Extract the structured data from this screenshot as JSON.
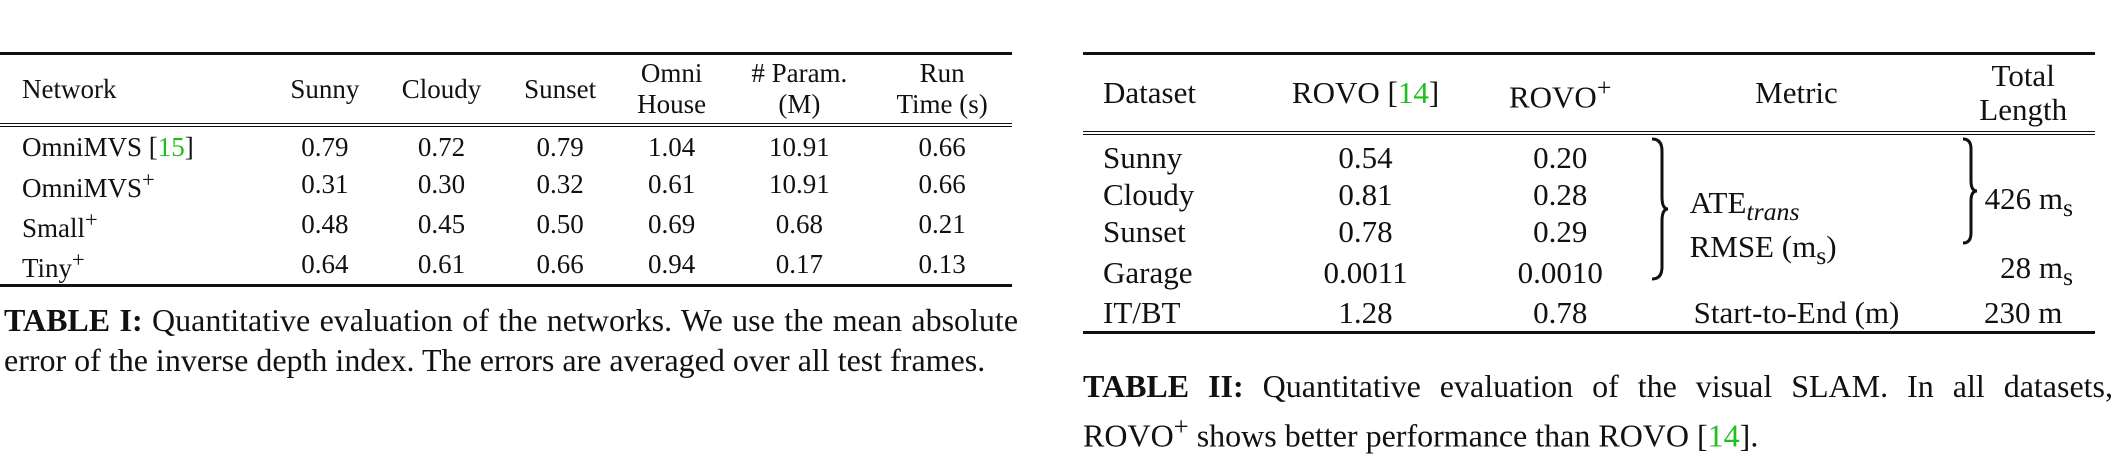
{
  "table1": {
    "headers": {
      "network": "Network",
      "sunny": "Sunny",
      "cloudy": "Cloudy",
      "sunset": "Sunset",
      "omni_house_1": "Omni",
      "omni_house_2": "House",
      "param_1": "# Param.",
      "param_2": "(M)",
      "runtime_1": "Run",
      "runtime_2": "Time (s)"
    },
    "rows": [
      {
        "network": "OmniMVS",
        "cite": "15",
        "sunny": "0.79",
        "cloudy": "0.72",
        "sunset": "0.79",
        "omni": "1.04",
        "param": "10.91",
        "runtime": "0.66"
      },
      {
        "network": "OmniMVS",
        "sup": "+",
        "sunny": "0.31",
        "cloudy": "0.30",
        "sunset": "0.32",
        "omni": "0.61",
        "param": "10.91",
        "runtime": "0.66"
      },
      {
        "network": "Small",
        "sup": "+",
        "sunny": "0.48",
        "cloudy": "0.45",
        "sunset": "0.50",
        "omni": "0.69",
        "param": "0.68",
        "runtime": "0.21"
      },
      {
        "network": "Tiny",
        "sup": "+",
        "sunny": "0.64",
        "cloudy": "0.61",
        "sunset": "0.66",
        "omni": "0.94",
        "param": "0.17",
        "runtime": "0.13"
      }
    ],
    "caption_label": "TABLE I:",
    "caption_text": "Quantitative evaluation of the networks. We use the mean absolute error of the inverse depth index. The errors are averaged over all test frames."
  },
  "table2": {
    "headers": {
      "dataset": "Dataset",
      "rovo": "ROVO",
      "rovo_cite": "14",
      "rovo_plus": "ROVO",
      "rovo_plus_sup": "+",
      "metric": "Metric",
      "total_1": "Total",
      "total_2": "Length"
    },
    "rows": [
      {
        "dataset": "Sunny",
        "rovo": "0.54",
        "rovo_plus": "0.20"
      },
      {
        "dataset": "Cloudy",
        "rovo": "0.81",
        "rovo_plus": "0.28"
      },
      {
        "dataset": "Sunset",
        "rovo": "0.78",
        "rovo_plus": "0.29"
      },
      {
        "dataset": "Garage",
        "rovo": "0.0011",
        "rovo_plus": "0.0010"
      },
      {
        "dataset": "IT/BT",
        "rovo": "1.28",
        "rovo_plus": "0.78"
      }
    ],
    "metric_ate": "ATE",
    "metric_ate_sub": "trans",
    "metric_rmse": "RMSE (m",
    "metric_rmse_sub": "s",
    "metric_rmse_close": ")",
    "length_outdoor": "426 m",
    "length_outdoor_sub": "s",
    "length_garage": "28 m",
    "length_garage_sub": "s",
    "metric_itbt": "Start-to-End (m)",
    "length_itbt": "230 m",
    "caption_label": "TABLE II:",
    "caption_text_1": "Quantitative evaluation of the visual SLAM. In all datasets, ROVO",
    "caption_sup": "+",
    "caption_text_2": "shows better performance than ROVO",
    "caption_cite": "14",
    "caption_end": "."
  }
}
